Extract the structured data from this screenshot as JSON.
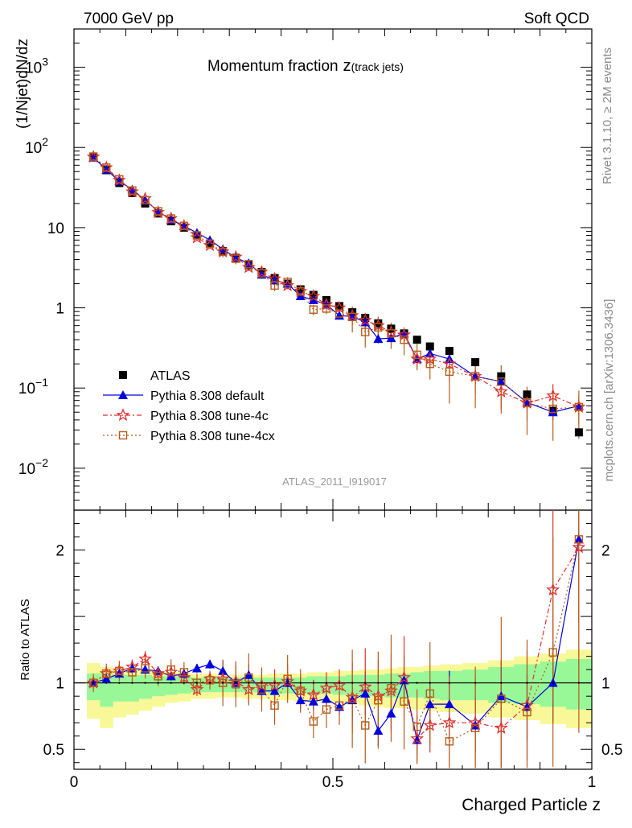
{
  "header": {
    "left": "7000 GeV pp",
    "right": "Soft QCD"
  },
  "side": {
    "rivet": "Rivet 3.1.10, ≥ 2M events",
    "mcplots": "mcplots.cern.ch [arXiv:1306.3436]"
  },
  "watermark": "ATLAS_2011_I919017",
  "chart_data": {
    "type": "scatter",
    "title": "Momentum fraction",
    "title_z": "z",
    "title_sub": "(track jets)",
    "ylabel": "(1/Njet)dN/dz",
    "ratio_ylabel": "Ratio to ATLAS",
    "xlabel": "Charged Particle z",
    "xlim": [
      0,
      1
    ],
    "ylim": [
      0.003,
      3000
    ],
    "yscale": "log",
    "ratio_ylim": [
      0.35,
      2.3
    ],
    "x_ticks": [
      {
        "v": 0,
        "label": "0"
      },
      {
        "v": 0.5,
        "label": "0.5"
      },
      {
        "v": 1,
        "label": "1"
      }
    ],
    "y_ticks": [
      {
        "v": 1000,
        "base": "10",
        "exp": "3"
      },
      {
        "v": 100,
        "base": "10",
        "exp": "2"
      },
      {
        "v": 10,
        "base": "10",
        "exp": ""
      },
      {
        "v": 1,
        "base": "1",
        "exp": ""
      },
      {
        "v": 0.1,
        "base": "10",
        "exp": "−1"
      },
      {
        "v": 0.01,
        "base": "10",
        "exp": "−2"
      }
    ],
    "ratio_ticks": [
      {
        "v": 0.5,
        "label": "0.5"
      },
      {
        "v": 1,
        "label": "1"
      },
      {
        "v": 2,
        "label": "2"
      }
    ],
    "legend": [
      {
        "key": "atlas",
        "label": "ATLAS"
      },
      {
        "key": "default",
        "label": "Pythia 8.308 default"
      },
      {
        "key": "tune4c",
        "label": "Pythia 8.308 tune-4c"
      },
      {
        "key": "tune4cx",
        "label": "Pythia 8.308 tune-4cx"
      }
    ],
    "colors": {
      "atlas": "#000000",
      "default": "#0000dd",
      "tune4c": "#e03030",
      "tune4cx": "#b85c1a",
      "band_inner": "#98f898",
      "band_outer": "#f8f898"
    },
    "x": [
      0.0375,
      0.0625,
      0.0875,
      0.1125,
      0.1375,
      0.1625,
      0.1875,
      0.2125,
      0.2375,
      0.2625,
      0.2875,
      0.3125,
      0.3375,
      0.3625,
      0.3875,
      0.4125,
      0.4375,
      0.4625,
      0.4875,
      0.5125,
      0.5375,
      0.5625,
      0.5875,
      0.6125,
      0.6375,
      0.6625,
      0.6875,
      0.725,
      0.775,
      0.825,
      0.875,
      0.925,
      0.975
    ],
    "atlas": [
      75,
      52,
      36,
      27,
      20,
      15,
      12,
      10,
      8,
      6.3,
      5.1,
      4.2,
      3.4,
      2.8,
      2.35,
      2.0,
      1.7,
      1.45,
      1.25,
      1.05,
      0.88,
      0.75,
      0.64,
      0.55,
      0.48,
      0.4,
      0.33,
      0.29,
      0.21,
      0.14,
      0.083,
      0.052,
      0.028
    ],
    "series": [
      {
        "name": "Pythia 8.308 default",
        "values": [
          75,
          53,
          38,
          30,
          22,
          16,
          12.5,
          10.5,
          8.6,
          7.0,
          5.4,
          4.2,
          3.6,
          2.6,
          2.2,
          2.0,
          1.4,
          1.25,
          1.1,
          0.8,
          0.78,
          0.66,
          0.41,
          0.42,
          0.48,
          0.23,
          0.27,
          0.23,
          0.14,
          0.12,
          0.066,
          0.05,
          0.06
        ],
        "ratio": [
          1.0,
          1.03,
          1.07,
          1.11,
          1.1,
          1.09,
          1.05,
          1.07,
          1.11,
          1.14,
          1.09,
          1.0,
          1.06,
          0.94,
          0.94,
          1.0,
          0.87,
          0.86,
          0.88,
          0.82,
          0.87,
          0.92,
          0.64,
          0.77,
          1.02,
          0.57,
          0.84,
          0.84,
          0.68,
          0.9,
          0.82,
          1.0,
          2.08
        ]
      },
      {
        "name": "Pythia 8.308 tune-4c",
        "values": [
          76,
          56,
          39,
          28,
          23,
          15.5,
          13,
          10.5,
          7.5,
          6.0,
          5.0,
          4.3,
          3.2,
          2.8,
          2.3,
          1.9,
          1.6,
          1.4,
          1.1,
          1.0,
          0.8,
          0.7,
          0.6,
          0.5,
          0.46,
          0.23,
          0.23,
          0.2,
          0.14,
          0.09,
          0.065,
          0.08,
          0.058
        ],
        "ratio": [
          1.0,
          1.07,
          1.09,
          1.12,
          1.18,
          1.07,
          1.08,
          1.04,
          0.95,
          1.03,
          1.03,
          1.01,
          0.95,
          0.98,
          0.98,
          1.01,
          0.94,
          0.91,
          0.96,
          0.98,
          0.89,
          0.97,
          0.9,
          0.94,
          1.04,
          0.58,
          0.68,
          0.7,
          0.7,
          0.66,
          0.83,
          1.7,
          2.02
        ]
      },
      {
        "name": "Pythia 8.308 tune-4cx",
        "values": [
          77,
          56,
          40,
          29,
          22,
          16,
          13,
          10.5,
          8.0,
          6.3,
          5.0,
          4.1,
          3.5,
          2.7,
          1.9,
          2.1,
          1.6,
          0.95,
          0.98,
          0.85,
          0.77,
          0.5,
          0.57,
          0.48,
          0.4,
          0.26,
          0.2,
          0.16,
          0.14,
          0.12,
          0.065,
          0.055,
          0.058
        ],
        "ratio": [
          1.0,
          1.07,
          1.09,
          1.08,
          1.11,
          1.05,
          1.1,
          1.08,
          1.0,
          1.02,
          1.0,
          0.99,
          1.04,
          0.95,
          0.83,
          1.03,
          0.94,
          0.71,
          0.8,
          0.83,
          0.88,
          0.68,
          0.87,
          0.96,
          0.86,
          0.67,
          0.92,
          0.56,
          0.66,
          0.88,
          0.78,
          1.23,
          2.08
        ]
      }
    ],
    "ratio_band_outer": [
      [
        0.73,
        1.15
      ],
      [
        0.66,
        1.12
      ],
      [
        0.74,
        1.1
      ],
      [
        0.76,
        1.1
      ],
      [
        0.79,
        1.1
      ],
      [
        0.82,
        1.09
      ],
      [
        0.85,
        1.08
      ],
      [
        0.86,
        1.08
      ],
      [
        0.88,
        1.07
      ],
      [
        0.88,
        1.07
      ],
      [
        0.89,
        1.06
      ],
      [
        0.89,
        1.06
      ],
      [
        0.88,
        1.06
      ],
      [
        0.88,
        1.06
      ],
      [
        0.87,
        1.07
      ],
      [
        0.87,
        1.07
      ],
      [
        0.86,
        1.07
      ],
      [
        0.85,
        1.08
      ],
      [
        0.86,
        1.08
      ],
      [
        0.85,
        1.09
      ],
      [
        0.84,
        1.09
      ],
      [
        0.83,
        1.1
      ],
      [
        0.82,
        1.1
      ],
      [
        0.81,
        1.11
      ],
      [
        0.81,
        1.12
      ],
      [
        0.8,
        1.12
      ],
      [
        0.79,
        1.13
      ],
      [
        0.78,
        1.14
      ],
      [
        0.77,
        1.15
      ],
      [
        0.74,
        1.17
      ],
      [
        0.72,
        1.2
      ],
      [
        0.69,
        1.22
      ],
      [
        0.66,
        1.25
      ]
    ],
    "ratio_band_inner": [
      [
        0.87,
        1.07
      ],
      [
        0.82,
        1.07
      ],
      [
        0.86,
        1.06
      ],
      [
        0.86,
        1.06
      ],
      [
        0.88,
        1.06
      ],
      [
        0.9,
        1.05
      ],
      [
        0.91,
        1.05
      ],
      [
        0.92,
        1.05
      ],
      [
        0.93,
        1.04
      ],
      [
        0.93,
        1.04
      ],
      [
        0.93,
        1.04
      ],
      [
        0.93,
        1.04
      ],
      [
        0.93,
        1.04
      ],
      [
        0.93,
        1.04
      ],
      [
        0.92,
        1.04
      ],
      [
        0.92,
        1.04
      ],
      [
        0.92,
        1.04
      ],
      [
        0.91,
        1.05
      ],
      [
        0.92,
        1.05
      ],
      [
        0.91,
        1.05
      ],
      [
        0.91,
        1.06
      ],
      [
        0.9,
        1.06
      ],
      [
        0.9,
        1.06
      ],
      [
        0.89,
        1.07
      ],
      [
        0.89,
        1.07
      ],
      [
        0.89,
        1.08
      ],
      [
        0.88,
        1.09
      ],
      [
        0.87,
        1.09
      ],
      [
        0.87,
        1.1
      ],
      [
        0.85,
        1.12
      ],
      [
        0.84,
        1.14
      ],
      [
        0.82,
        1.16
      ],
      [
        0.8,
        1.18
      ]
    ]
  }
}
